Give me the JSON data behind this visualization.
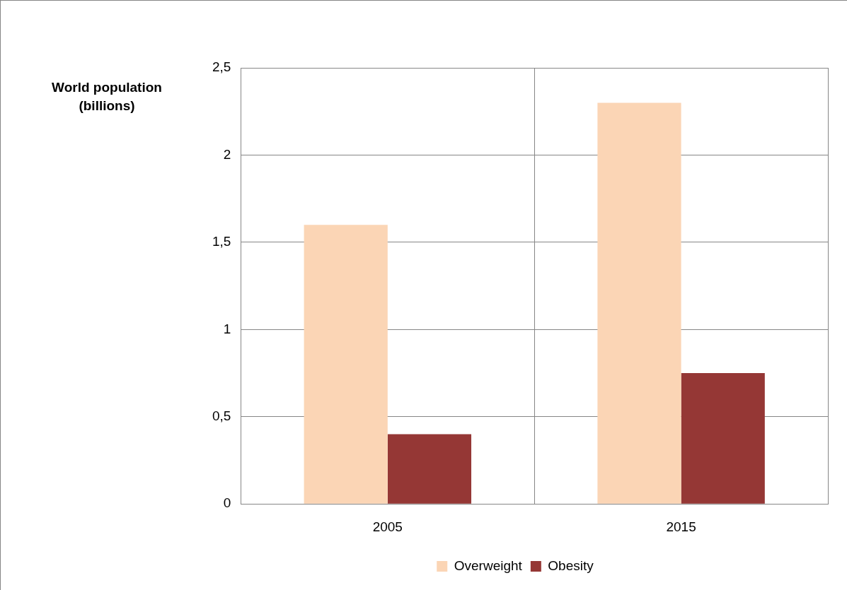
{
  "chart_data": {
    "type": "bar",
    "ylabel": "World population (billions)",
    "categories": [
      "2005",
      "2015"
    ],
    "series": [
      {
        "name": "Overweight",
        "color": "#fbd5b5",
        "values": [
          1.6,
          2.3
        ]
      },
      {
        "name": "Obesity",
        "color": "#953735",
        "values": [
          0.4,
          0.75
        ]
      }
    ],
    "ylim": [
      0,
      2.5
    ],
    "yticks": [
      0,
      {
        "value": 0.5,
        "label": "0,5"
      },
      1,
      {
        "value": 1.5,
        "label": "1,5"
      },
      2,
      {
        "value": 2.5,
        "label": "2,5"
      }
    ],
    "grid": true,
    "legend": "bottom"
  }
}
